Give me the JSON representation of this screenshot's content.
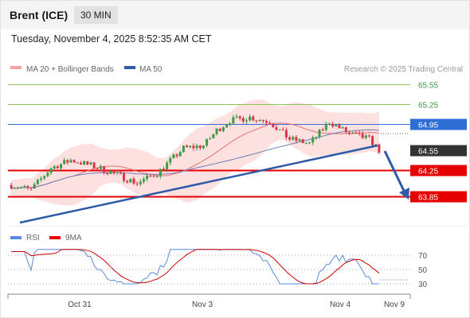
{
  "header": {
    "instrument": "Brent (ICE)",
    "timeframe": "30 MIN",
    "datetime": "Tuesday, November 4, 2025 8:52:35 AM CET"
  },
  "legend": {
    "ma20_label": "MA 20 + Bollinger Bands",
    "ma50_label": "MA 50",
    "copyright": "Research © 2025 Trading Central"
  },
  "rsi_legend": {
    "rsi_label": "RSI",
    "ma_label": "9MA"
  },
  "colors": {
    "bullish": "#3e9a45",
    "bearish": "#d8344a",
    "ma20": "#e57373",
    "ma50": "#2e5aa8",
    "bollinger_fill": "#fde0e0",
    "level_red": "#e60000",
    "level_green": "#8cc45a",
    "level_blue": "#2e6ed6",
    "price_tag": "#333333",
    "trendline": "#2e5aa8",
    "arrow": "#2e5aa8",
    "rsi_line": "#5a8ae0",
    "rsi_ma": "#cc0000"
  },
  "chart_data": {
    "type": "candlestick",
    "x_labels": [
      "Oct 31",
      "Nov 3",
      "Nov 4",
      "Nov 9"
    ],
    "y_range": [
      63.75,
      65.75
    ],
    "levels": [
      {
        "value": 65.55,
        "label": "65.55",
        "style": "resistance"
      },
      {
        "value": 65.25,
        "label": "65.25",
        "style": "resistance"
      },
      {
        "value": 64.95,
        "label": "64.95",
        "style": "pivot"
      },
      {
        "value": 64.55,
        "label": "64.55",
        "style": "last"
      },
      {
        "value": 64.25,
        "label": "64.25",
        "style": "support"
      },
      {
        "value": 63.85,
        "label": "63.85",
        "style": "support"
      }
    ],
    "rsi": {
      "y_range": [
        25,
        75
      ],
      "ticks": [
        "70",
        "50",
        "30"
      ]
    }
  }
}
